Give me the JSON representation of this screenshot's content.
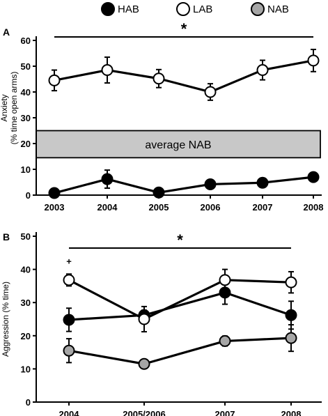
{
  "legend": [
    {
      "label": "HAB",
      "fill": "#000000"
    },
    {
      "label": "LAB",
      "fill": "#ffffff"
    },
    {
      "label": "NAB",
      "fill": "#a6a6a6"
    }
  ],
  "chart_data": [
    {
      "type": "line",
      "panel_label": "A",
      "ylabel_line1": "Anxiety",
      "ylabel_line2": "(% time open arms)",
      "xlabel": "",
      "categories": [
        "2003",
        "2004",
        "2005",
        "2006",
        "2007",
        "2008"
      ],
      "ylim": [
        0,
        60
      ],
      "yticks": [
        0,
        10,
        20,
        30,
        40,
        50,
        60
      ],
      "significance": "*",
      "significance_span": [
        "2003",
        "2008"
      ],
      "band": {
        "label": "average NAB",
        "y_from": 14.5,
        "y_to": 25
      },
      "series": [
        {
          "name": "LAB",
          "fill": "#ffffff",
          "values": [
            44.5,
            48.5,
            45.2,
            40.0,
            48.5,
            52.2
          ],
          "errors": [
            4.0,
            5.0,
            3.5,
            3.2,
            3.8,
            4.3
          ]
        },
        {
          "name": "HAB",
          "fill": "#000000",
          "values": [
            0.8,
            6.2,
            1.0,
            4.2,
            4.8,
            7.0
          ],
          "errors": [
            0.5,
            3.5,
            0.5,
            0.5,
            0.5,
            0.5
          ]
        }
      ]
    },
    {
      "type": "line",
      "panel_label": "B",
      "ylabel": "Aggression (% time)",
      "xlabel": "",
      "categories": [
        "2004",
        "2005/2006",
        "2007",
        "2008"
      ],
      "ylim": [
        0,
        50
      ],
      "yticks": [
        0,
        10,
        20,
        30,
        40,
        50
      ],
      "significance": "*",
      "significance_span": [
        "2004",
        "2008"
      ],
      "annotations": [
        {
          "text": "+",
          "category": "2004",
          "y": 42.5
        }
      ],
      "series": [
        {
          "name": "HAB",
          "fill": "#000000",
          "values": [
            24.8,
            26.2,
            33.0,
            26.2
          ],
          "errors": [
            3.5,
            1.5,
            3.5,
            4.2
          ]
        },
        {
          "name": "LAB",
          "fill": "#ffffff",
          "values": [
            36.8,
            25.0,
            36.8,
            36.1
          ],
          "errors": [
            1.8,
            3.8,
            3.2,
            3.2
          ]
        },
        {
          "name": "NAB",
          "fill": "#a6a6a6",
          "values": [
            15.5,
            11.5,
            18.4,
            19.3
          ],
          "errors": [
            3.6,
            0.6,
            1.5,
            4.0
          ]
        }
      ]
    }
  ]
}
